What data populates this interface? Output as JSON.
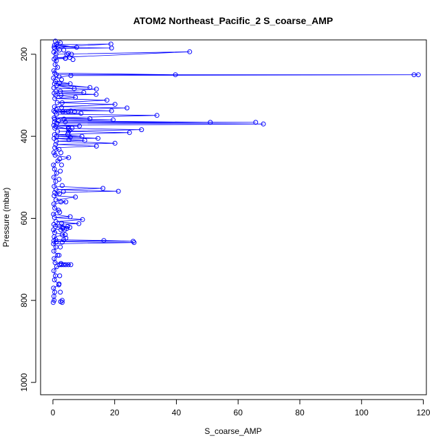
{
  "chart_data": {
    "type": "scatter",
    "title": "ATOM2 Northeast_Pacific_2 S_coarse_AMP",
    "xlabel": "S_coarse_AMP",
    "ylabel": "Pressure (mbar)",
    "xlim": [
      -4,
      121
    ],
    "ylim": [
      1030,
      165
    ],
    "y_reversed": true,
    "x_ticks": [
      0,
      20,
      40,
      60,
      80,
      100,
      120
    ],
    "y_ticks": [
      200,
      400,
      600,
      800,
      1000
    ],
    "marker": "open-circle",
    "connect_points": true,
    "grid": false,
    "legend": "none",
    "color": "#0000ff",
    "series": [
      {
        "points": [
          [
            0.1,
            805
          ],
          [
            0.4,
            800
          ],
          [
            0.3,
            790
          ],
          [
            0.6,
            780
          ],
          [
            0.2,
            770
          ],
          [
            1.9,
            762
          ],
          [
            0.5,
            750
          ],
          [
            0.8,
            740
          ],
          [
            0.3,
            728
          ],
          [
            1.2,
            718
          ],
          [
            5.8,
            713
          ],
          [
            0.7,
            708
          ],
          [
            0.4,
            698
          ],
          [
            1.5,
            690
          ],
          [
            0.3,
            680
          ],
          [
            1.0,
            670
          ],
          [
            0.2,
            662
          ],
          [
            26.3,
            659
          ],
          [
            1.1,
            657
          ],
          [
            0.3,
            655
          ],
          [
            26.0,
            656
          ],
          [
            16.5,
            654
          ],
          [
            0.9,
            652
          ],
          [
            0.4,
            645
          ],
          [
            4.0,
            640
          ],
          [
            0.6,
            635
          ],
          [
            0.2,
            628
          ],
          [
            3.2,
            625
          ],
          [
            0.8,
            620
          ],
          [
            5.5,
            622
          ],
          [
            0.3,
            615
          ],
          [
            8.4,
            613
          ],
          [
            1.0,
            608
          ],
          [
            9.6,
            603
          ],
          [
            0.5,
            598
          ],
          [
            5.6,
            596
          ],
          [
            0.2,
            590
          ],
          [
            1.8,
            580
          ],
          [
            0.6,
            575
          ],
          [
            0.3,
            565
          ],
          [
            4.2,
            560
          ],
          [
            1.0,
            555
          ],
          [
            7.3,
            548
          ],
          [
            0.4,
            545
          ],
          [
            2.1,
            540
          ],
          [
            0.6,
            537
          ],
          [
            21.2,
            534
          ],
          [
            1.0,
            530
          ],
          [
            16.2,
            527
          ],
          [
            0.4,
            522
          ],
          [
            0.9,
            510
          ],
          [
            0.3,
            500
          ],
          [
            1.2,
            490
          ],
          [
            0.5,
            480
          ],
          [
            0.2,
            470
          ],
          [
            1.6,
            460
          ],
          [
            5.1,
            452
          ],
          [
            0.7,
            446
          ],
          [
            0.3,
            440
          ],
          [
            2.0,
            432
          ],
          [
            0.6,
            428
          ],
          [
            14.1,
            424
          ],
          [
            0.9,
            420
          ],
          [
            20.1,
            417
          ],
          [
            1.1,
            412
          ],
          [
            10.3,
            410
          ],
          [
            0.4,
            405
          ],
          [
            14.6,
            405
          ],
          [
            1.2,
            400
          ],
          [
            9.4,
            400
          ],
          [
            0.5,
            396
          ],
          [
            24.8,
            391
          ],
          [
            1.5,
            388
          ],
          [
            28.7,
            384
          ],
          [
            0.6,
            380
          ],
          [
            5.0,
            382
          ],
          [
            0.9,
            376
          ],
          [
            8.6,
            375
          ],
          [
            0.3,
            373
          ],
          [
            68.2,
            370
          ],
          [
            1.3,
            368
          ],
          [
            65.7,
            366
          ],
          [
            0.5,
            365
          ],
          [
            51.0,
            366
          ],
          [
            1.9,
            362
          ],
          [
            19.5,
            360
          ],
          [
            0.6,
            358
          ],
          [
            12.0,
            357
          ],
          [
            0.4,
            355
          ],
          [
            33.7,
            349
          ],
          [
            1.2,
            346
          ],
          [
            9.1,
            344
          ],
          [
            0.7,
            341
          ],
          [
            5.0,
            340
          ],
          [
            0.3,
            338
          ],
          [
            19.0,
            338
          ],
          [
            1.1,
            335
          ],
          [
            24.0,
            331
          ],
          [
            0.5,
            328
          ],
          [
            20.1,
            322
          ],
          [
            1.4,
            318
          ],
          [
            17.5,
            312
          ],
          [
            0.6,
            308
          ],
          [
            7.3,
            305
          ],
          [
            0.9,
            300
          ],
          [
            14.0,
            298
          ],
          [
            0.4,
            295
          ],
          [
            10.0,
            293
          ],
          [
            1.0,
            290
          ],
          [
            14.1,
            285
          ],
          [
            0.3,
            282
          ],
          [
            6.9,
            284
          ],
          [
            1.2,
            276
          ],
          [
            12.0,
            281
          ],
          [
            0.5,
            272
          ],
          [
            5.6,
            272
          ],
          [
            0.8,
            266
          ],
          [
            0.2,
            258
          ],
          [
            5.8,
            252
          ],
          [
            117.0,
            250
          ],
          [
            118.4,
            250
          ],
          [
            1.1,
            250
          ],
          [
            39.7,
            250
          ],
          [
            0.6,
            246
          ],
          [
            0.3,
            240
          ],
          [
            1.5,
            232
          ],
          [
            0.7,
            225
          ],
          [
            1.1,
            216
          ],
          [
            0.4,
            212
          ],
          [
            4.1,
            210
          ],
          [
            0.9,
            208
          ],
          [
            44.3,
            194
          ],
          [
            1.0,
            200
          ],
          [
            0.3,
            195
          ],
          [
            2.1,
            190
          ],
          [
            0.6,
            186
          ],
          [
            19.0,
            185
          ],
          [
            0.4,
            183
          ],
          [
            18.8,
            175
          ],
          [
            1.2,
            176
          ],
          [
            7.7,
            183
          ],
          [
            0.5,
            178
          ],
          [
            2.4,
            172
          ],
          [
            0.8,
            168
          ]
        ],
        "extra_points": [
          [
            4.0,
            210
          ],
          [
            6.5,
            213
          ],
          [
            3.5,
            190
          ],
          [
            4.5,
            200
          ],
          [
            5.0,
            198
          ],
          [
            6.0,
            200
          ],
          [
            5.5,
            208
          ],
          [
            7.0,
            340
          ],
          [
            5.8,
            338
          ],
          [
            5.0,
            378
          ],
          [
            6.2,
            380
          ],
          [
            5.5,
            385
          ],
          [
            5.0,
            390
          ],
          [
            4.8,
            395
          ],
          [
            5.6,
            402
          ],
          [
            5.2,
            408
          ],
          [
            4.8,
            620
          ],
          [
            4.5,
            625
          ],
          [
            3.8,
            628
          ],
          [
            3.2,
            622
          ],
          [
            2.6,
            628
          ],
          [
            4.2,
            648
          ],
          [
            3.5,
            652
          ],
          [
            3.0,
            658
          ],
          [
            5.0,
            713
          ],
          [
            4.2,
            713
          ],
          [
            3.5,
            713
          ],
          [
            2.8,
            713
          ],
          [
            2.2,
            713
          ],
          [
            3.0,
            800
          ],
          [
            2.5,
            803
          ],
          [
            3.0,
            805
          ],
          [
            2.8,
            330
          ],
          [
            3.2,
            340
          ],
          [
            3.6,
            358
          ],
          [
            4.0,
            365
          ],
          [
            2.6,
            300
          ],
          [
            3.0,
            318
          ],
          [
            2.2,
            270
          ],
          [
            2.8,
            262
          ],
          [
            2.0,
            255
          ],
          [
            2.4,
            290
          ],
          [
            2.6,
            440
          ],
          [
            2.2,
            455
          ],
          [
            2.8,
            470
          ],
          [
            2.4,
            485
          ],
          [
            2.0,
            505
          ],
          [
            3.0,
            520
          ],
          [
            3.4,
            535
          ],
          [
            2.6,
            560
          ],
          [
            2.2,
            585
          ],
          [
            2.8,
            612
          ],
          [
            3.0,
            640
          ],
          [
            2.4,
            670
          ],
          [
            2.0,
            690
          ],
          [
            2.6,
            710
          ],
          [
            2.2,
            740
          ],
          [
            2.0,
            760
          ],
          [
            2.4,
            780
          ]
        ]
      }
    ]
  }
}
